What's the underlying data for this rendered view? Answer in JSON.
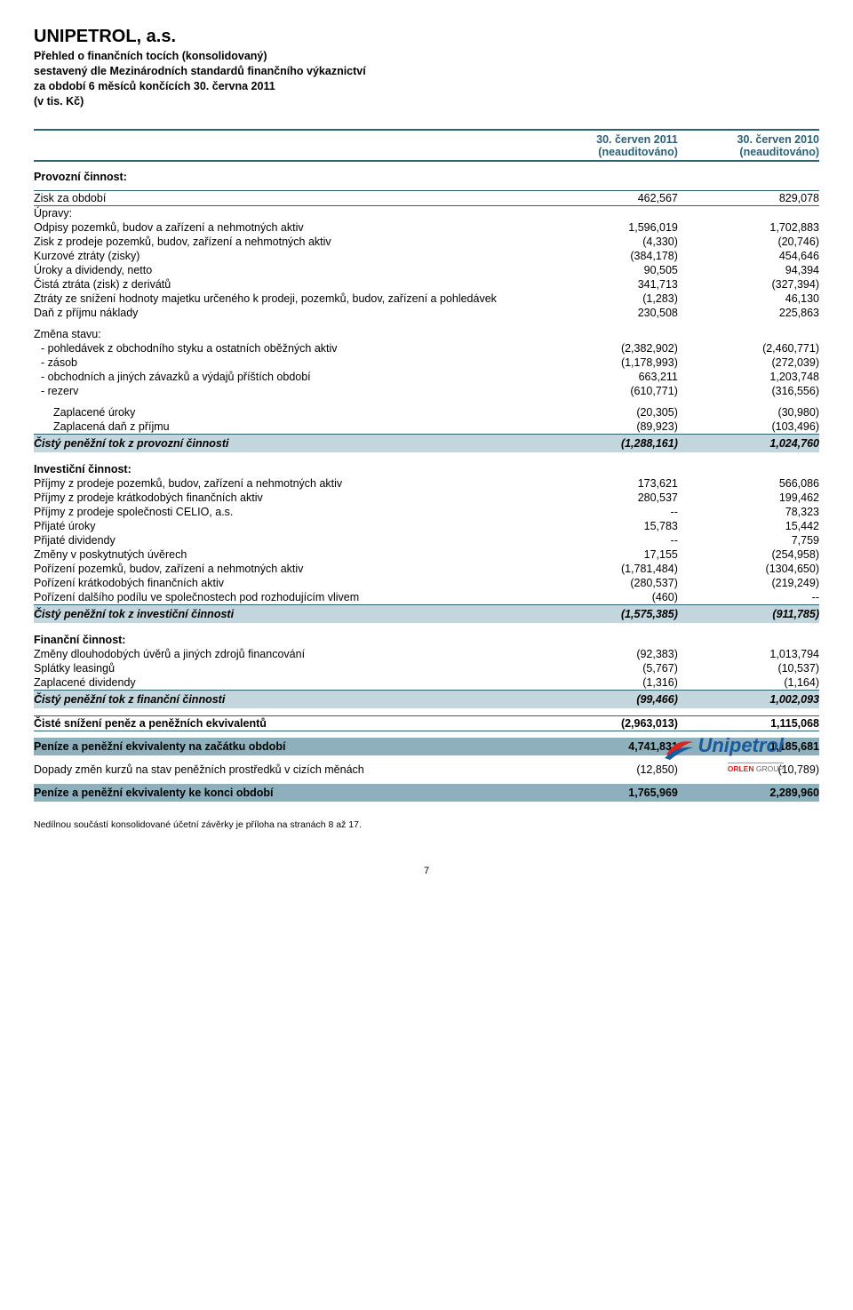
{
  "header": {
    "company": "UNIPETROL, a.s.",
    "line1": "Přehled o finančních tocích (konsolidovaný)",
    "line2": "sestavený dle Mezinárodních standardů finančního výkaznictví",
    "line3": "za období 6 měsíců končících 30. června 2011",
    "line4": "(v tis. Kč)"
  },
  "cols": {
    "c1_a": "30. červen 2011",
    "c1_b": "(neauditováno)",
    "c2_a": "30. červen 2010",
    "c2_b": "(neauditováno)"
  },
  "operating": {
    "title": "Provozní činnost:",
    "profit": {
      "l": "Zisk za období",
      "v1": "462,567",
      "v2": "829,078"
    },
    "adjust": "Úpravy:",
    "rows": [
      {
        "l": "Odpisy pozemků, budov a zařízení a nehmotných aktiv",
        "v1": "1,596,019",
        "v2": "1,702,883"
      },
      {
        "l": "Zisk z prodeje pozemků, budov, zařízení a nehmotných aktiv",
        "v1": "(4,330)",
        "v2": "(20,746)"
      },
      {
        "l": "Kurzové ztráty (zisky)",
        "v1": "(384,178)",
        "v2": "454,646"
      },
      {
        "l": "Úroky a dividendy, netto",
        "v1": "90,505",
        "v2": "94,394"
      },
      {
        "l": "Čistá ztráta (zisk) z derivátů",
        "v1": "341,713",
        "v2": "(327,394)"
      },
      {
        "l": "Ztráty ze snížení hodnoty majetku určeného k prodeji, pozemků, budov, zařízení a pohledávek",
        "v1": "(1,283)",
        "v2": "46,130"
      },
      {
        "l": "Daň z příjmu náklady",
        "v1": "230,508",
        "v2": "225,863"
      }
    ],
    "changes_title": "Změna stavu:",
    "changes": [
      {
        "l": "- pohledávek z obchodního styku a ostatních oběžných aktiv",
        "v1": "(2,382,902)",
        "v2": "(2,460,771)"
      },
      {
        "l": "- zásob",
        "v1": "(1,178,993)",
        "v2": "(272,039)"
      },
      {
        "l": "- obchodních a jiných závazků a výdajů příštích období",
        "v1": "663,211",
        "v2": "1,203,748"
      },
      {
        "l": "- rezerv",
        "v1": "(610,771)",
        "v2": "(316,556)"
      }
    ],
    "paid": [
      {
        "l": "Zaplacené úroky",
        "v1": "(20,305)",
        "v2": "(30,980)"
      },
      {
        "l": "Zaplacená daň z příjmu",
        "v1": "(89,923)",
        "v2": "(103,496)"
      }
    ],
    "net": {
      "l": "Čistý peněžní tok z provozní činnosti",
      "v1": "(1,288,161)",
      "v2": "1,024,760"
    }
  },
  "investing": {
    "title": "Investiční činnost:",
    "rows": [
      {
        "l": "Příjmy z prodeje pozemků, budov, zařízení a nehmotných aktiv",
        "v1": "173,621",
        "v2": "566,086"
      },
      {
        "l": "Příjmy z prodeje krátkodobých finančních aktiv",
        "v1": "280,537",
        "v2": "199,462"
      },
      {
        "l": "Příjmy z prodeje společnosti CELIO, a.s.",
        "v1": "--",
        "v2": "78,323"
      },
      {
        "l": "Přijaté úroky",
        "v1": "15,783",
        "v2": "15,442"
      },
      {
        "l": "Přijaté dividendy",
        "v1": "--",
        "v2": "7,759"
      },
      {
        "l": "Změny v poskytnutých úvěrech",
        "v1": "17,155",
        "v2": "(254,958)"
      },
      {
        "l": "Pořízení pozemků, budov, zařízení a nehmotných aktiv",
        "v1": "(1,781,484)",
        "v2": "(1304,650)"
      },
      {
        "l": "Pořízení krátkodobých finančních aktiv",
        "v1": "(280,537)",
        "v2": "(219,249)"
      },
      {
        "l": "Pořízení dalšího podílu ve společnostech pod rozhodujícím vlivem",
        "v1": "(460)",
        "v2": "--"
      }
    ],
    "net": {
      "l": "Čistý peněžní tok z investiční činnosti",
      "v1": "(1,575,385)",
      "v2": "(911,785)"
    }
  },
  "financing": {
    "title": "Finanční činnost:",
    "rows": [
      {
        "l": "Změny dlouhodobých úvěrů a jiných zdrojů financování",
        "v1": "(92,383)",
        "v2": "1,013,794"
      },
      {
        "l": "Splátky leasingů",
        "v1": "(5,767)",
        "v2": "(10,537)"
      },
      {
        "l": "Zaplacené dividendy",
        "v1": "(1,316)",
        "v2": "(1,164)"
      }
    ],
    "net": {
      "l": "Čistý peněžní tok z finanční činnosti",
      "v1": "(99,466)",
      "v2": "1,002,093"
    }
  },
  "totals": {
    "net_change": {
      "l": "Čisté snížení peněz a peněžních ekvivalentů",
      "v1": "(2,963,013)",
      "v2": "1,115,068"
    },
    "begin": {
      "l": "Peníze a peněžní ekvivalenty na začátku období",
      "v1": "4,741,831",
      "v2": "1,185,681"
    },
    "fx": {
      "l": "Dopady změn kurzů na stav peněžních prostředků v cizích měnách",
      "v1": "(12,850)",
      "v2": "(10,789)"
    },
    "end": {
      "l": "Peníze a peněžní ekvivalenty ke konci období",
      "v1": "1,765,969",
      "v2": "2,289,960"
    }
  },
  "footer_note": "Nedílnou součástí konsolidované účetní závěrky je příloha na stranách 8 až 17.",
  "page": "7",
  "logo": {
    "brand": "Unipetrol",
    "sub1": "ORLEN",
    "sub2": "GROUP"
  }
}
